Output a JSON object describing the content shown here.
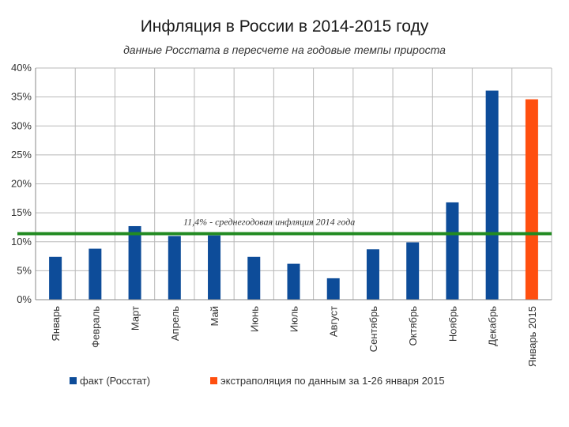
{
  "chart_data": {
    "type": "bar",
    "title": "Инфляция в России в 2014-2015 году",
    "subtitle": "данные Росстата в пересчете на годовые темпы прироста",
    "categories": [
      "Январь",
      "Февраль",
      "Март",
      "Апрель",
      "Май",
      "Июнь",
      "Июль",
      "Август",
      "Сентябрь",
      "Октябрь",
      "Ноябрь",
      "Декабрь",
      "Январь 2015"
    ],
    "series": [
      {
        "name": "факт (Росстат)",
        "color": "#0d4c99",
        "values": [
          7.4,
          8.8,
          12.7,
          11.0,
          11.1,
          7.4,
          6.2,
          3.7,
          8.7,
          9.9,
          16.8,
          36.1,
          null
        ]
      },
      {
        "name": "экстраполяция по данным за 1-26 января 2015",
        "color": "#ff4f0f",
        "values": [
          null,
          null,
          null,
          null,
          null,
          null,
          null,
          null,
          null,
          null,
          null,
          null,
          34.6
        ]
      }
    ],
    "ylim": [
      0,
      40
    ],
    "yticks": [
      0,
      5,
      10,
      15,
      20,
      25,
      30,
      35,
      40
    ],
    "ytick_labels": [
      "0%",
      "5%",
      "10%",
      "15%",
      "20%",
      "25%",
      "30%",
      "35%",
      "40%"
    ],
    "grid": true,
    "legend_position": "bottom",
    "reference_line": {
      "value": 11.4,
      "color": "#228b22",
      "label": "11,4% - среднегодовая инфляция 2014 года"
    }
  }
}
